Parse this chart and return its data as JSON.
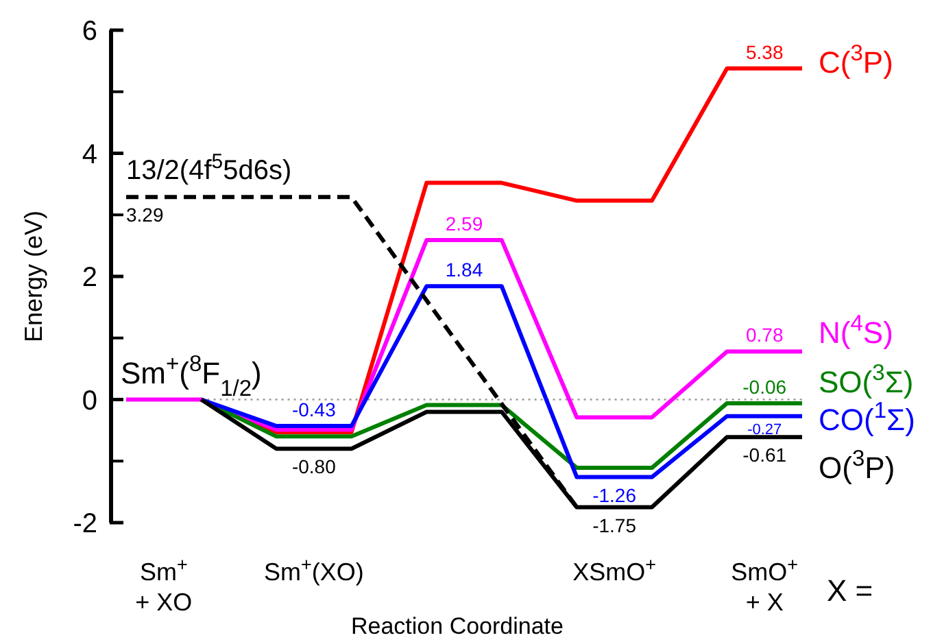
{
  "chart_data": {
    "type": "line",
    "xlabel": "Reaction Coordinate",
    "ylabel": "Energy (eV)",
    "categories": [
      null,
      "Sm$^{+}$\n+ XO",
      null,
      null,
      null,
      "Sm$^{+}$(XO)",
      null,
      null,
      null,
      null,
      null,
      null,
      null,
      "XSmO$^{+}$",
      null,
      null,
      null,
      "SmO$^{+}$\n+ X",
      null
    ],
    "ylim": [
      -2,
      6
    ],
    "yticks": [
      -2,
      {
        "value": -1,
        "label": null
      },
      0,
      {
        "value": 1,
        "label": null
      },
      2,
      {
        "value": 3,
        "label": null
      },
      4,
      {
        "value": 5,
        "label": null
      },
      6
    ],
    "grid": false,
    "legend": false,
    "marker": "none",
    "series": [
      {
        "name": "C($^{3}$P)",
        "color": "#ff0000",
        "values": [
          null,
          null,
          0,
          null,
          -0.53,
          -0.53,
          -0.53,
          null,
          3.52,
          3.52,
          3.52,
          null,
          3.23,
          3.23,
          3.23,
          null,
          5.38,
          5.38,
          5.38
        ],
        "value_labels": [
          null,
          null,
          null,
          null,
          null,
          null,
          null,
          null,
          null,
          null,
          null,
          null,
          null,
          null,
          null,
          null,
          null,
          "5.38",
          null
        ]
      },
      {
        "name": "N($^{4}$S)",
        "color": "#ff00ff",
        "values": [
          0,
          0,
          0,
          null,
          -0.49,
          -0.49,
          -0.49,
          null,
          2.59,
          2.59,
          2.59,
          null,
          -0.29,
          -0.29,
          -0.29,
          null,
          0.78,
          0.78,
          0.78
        ],
        "value_labels": [
          null,
          null,
          null,
          null,
          null,
          null,
          null,
          null,
          null,
          "2.59",
          null,
          null,
          null,
          null,
          null,
          null,
          null,
          "0.78",
          null
        ]
      },
      {
        "name": "SO($^{3}$Σ)",
        "color": "#008000",
        "values": [
          null,
          null,
          0,
          null,
          -0.6,
          -0.6,
          -0.6,
          null,
          -0.09,
          -0.09,
          -0.09,
          null,
          -1.11,
          -1.11,
          -1.11,
          null,
          -0.06,
          -0.06,
          -0.06
        ],
        "value_labels": [
          null,
          null,
          null,
          null,
          null,
          null,
          null,
          null,
          null,
          null,
          null,
          null,
          null,
          null,
          null,
          null,
          null,
          "-0.06",
          null
        ]
      },
      {
        "name": "CO($^{1}$Σ)",
        "color": "#0000ff",
        "values": [
          null,
          null,
          0,
          null,
          -0.43,
          -0.43,
          -0.43,
          null,
          1.84,
          1.84,
          1.84,
          null,
          -1.26,
          -1.26,
          -1.26,
          null,
          -0.27,
          -0.27,
          -0.27
        ],
        "value_labels": [
          null,
          null,
          null,
          null,
          null,
          "-0.43",
          null,
          null,
          null,
          "1.84",
          null,
          null,
          null,
          "-1.26",
          null,
          null,
          null,
          "-0.27",
          null
        ]
      },
      {
        "name": "O($^{3}$P)",
        "color": "#000000",
        "values": [
          null,
          null,
          0,
          null,
          -0.8,
          -0.8,
          -0.8,
          null,
          -0.2,
          -0.2,
          -0.2,
          null,
          -1.75,
          -1.75,
          -1.75,
          null,
          -0.61,
          -0.61,
          -0.61
        ],
        "value_labels": [
          null,
          null,
          null,
          null,
          null,
          "-0.80",
          null,
          null,
          null,
          null,
          null,
          null,
          null,
          "-1.75",
          null,
          null,
          null,
          "-0.61",
          null
        ]
      },
      {
        "name": "13/2(4f$^{5}$5d6s)",
        "color": "#000000",
        "line_style": "dashed",
        "values": [
          3.29,
          3.29,
          3.29,
          null,
          3.29,
          3.29,
          3.29,
          null,
          null,
          null,
          null,
          null,
          -1.75,
          null,
          null,
          null,
          null,
          null,
          null
        ],
        "value_labels": [
          "3.29",
          null,
          null,
          null,
          null,
          null,
          null,
          null,
          null,
          null,
          null,
          null,
          null,
          null,
          null,
          null,
          null,
          null,
          null
        ]
      }
    ],
    "ref_lines": [
      {
        "axis": "y",
        "value": 0,
        "color": "#999999",
        "line_style": "dotted"
      }
    ],
    "annotations": [
      "Sm$^{+}$($^{8}$F$_{1/2}$)",
      "X ="
    ]
  }
}
